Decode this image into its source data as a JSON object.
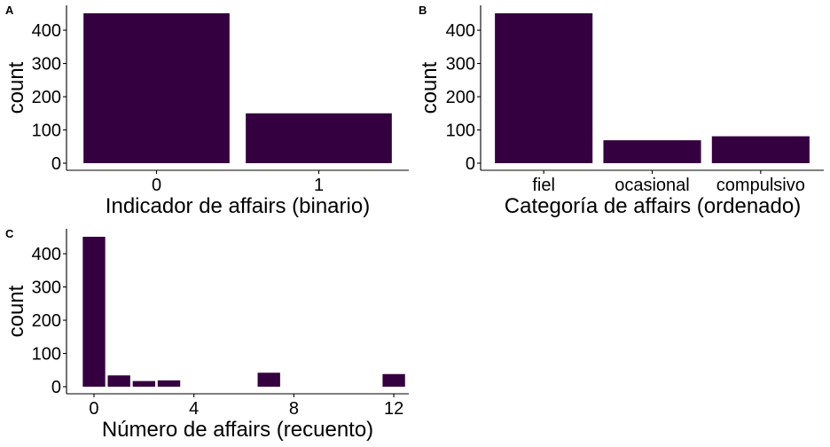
{
  "colors": {
    "bar": "#35003F",
    "axis": "#000000",
    "background": "#ffffff"
  },
  "chart_data": [
    {
      "panel": "A",
      "type": "bar",
      "categories": [
        "0",
        "1"
      ],
      "values": [
        451,
        150
      ],
      "xlabel": "Indicador de affairs (binario)",
      "ylabel": "count",
      "ylim": [
        0,
        470
      ],
      "yticks": [
        0,
        100,
        200,
        300,
        400
      ],
      "grid": false
    },
    {
      "panel": "B",
      "type": "bar",
      "categories": [
        "fiel",
        "ocasional",
        "compulsivo"
      ],
      "values": [
        451,
        69,
        81
      ],
      "xlabel": "Categoría de affairs (ordenado)",
      "ylabel": "count",
      "ylim": [
        0,
        470
      ],
      "yticks": [
        0,
        100,
        200,
        300,
        400
      ],
      "grid": false
    },
    {
      "panel": "C",
      "type": "bar",
      "x": [
        0,
        1,
        2,
        3,
        7,
        12
      ],
      "values": [
        451,
        34,
        17,
        19,
        42,
        38
      ],
      "xticks": [
        0,
        4,
        8,
        12
      ],
      "xlim": [
        -1.1,
        12.6
      ],
      "xlabel": "Número de affairs (recuento)",
      "ylabel": "count",
      "ylim": [
        0,
        470
      ],
      "yticks": [
        0,
        100,
        200,
        300,
        400
      ],
      "grid": false
    }
  ]
}
